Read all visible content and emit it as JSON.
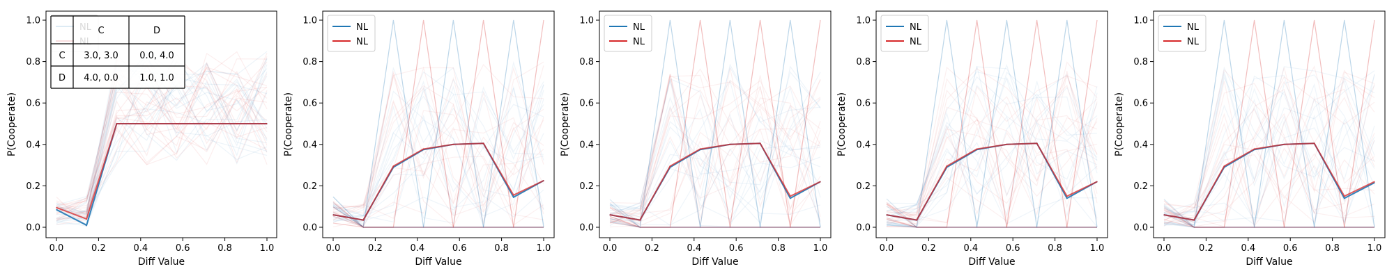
{
  "chart_data": [
    {
      "type": "line",
      "xlabel": "Diff Value",
      "ylabel": "P(Cooperate)",
      "xlim": [
        0.0,
        1.0
      ],
      "ylim": [
        0.0,
        1.0
      ],
      "x_ticks": [
        "0.0",
        "0.2",
        "0.4",
        "0.6",
        "0.8",
        "1.0"
      ],
      "y_ticks": [
        "0.0",
        "0.2",
        "0.4",
        "0.6",
        "0.8",
        "1.0"
      ],
      "grid": false,
      "legend_position": "top-left",
      "x": [
        0.0,
        0.143,
        0.286,
        0.429,
        0.571,
        0.714,
        0.857,
        1.0
      ],
      "series": [
        {
          "name": "NL",
          "color": "#1f77b4",
          "values": [
            0.085,
            0.01,
            0.5,
            0.5,
            0.5,
            0.5,
            0.5,
            0.5
          ]
        },
        {
          "name": "NL",
          "color": "#d62728",
          "values": [
            0.095,
            0.04,
            0.5,
            0.5,
            0.5,
            0.5,
            0.5,
            0.5
          ]
        }
      ],
      "payoff_table": {
        "header": [
          "",
          "C",
          "D"
        ],
        "rows": [
          [
            "C",
            "3.0, 3.0",
            "0.0, 4.0"
          ],
          [
            "D",
            "4.0, 0.0",
            "1.0, 1.0"
          ]
        ]
      }
    },
    {
      "type": "line",
      "xlabel": "Diff Value",
      "ylabel": "P(Cooperate)",
      "xlim": [
        0.0,
        1.0
      ],
      "ylim": [
        0.0,
        1.0
      ],
      "x_ticks": [
        "0.0",
        "0.2",
        "0.4",
        "0.6",
        "0.8",
        "1.0"
      ],
      "y_ticks": [
        "0.0",
        "0.2",
        "0.4",
        "0.6",
        "0.8",
        "1.0"
      ],
      "grid": false,
      "legend_position": "top-left",
      "x": [
        0.0,
        0.143,
        0.286,
        0.429,
        0.571,
        0.714,
        0.857,
        1.0
      ],
      "series": [
        {
          "name": "NL",
          "color": "#1f77b4",
          "values": [
            0.06,
            0.035,
            0.29,
            0.375,
            0.4,
            0.405,
            0.145,
            0.225
          ]
        },
        {
          "name": "NL",
          "color": "#d62728",
          "values": [
            0.06,
            0.035,
            0.295,
            0.378,
            0.4,
            0.405,
            0.155,
            0.225
          ]
        }
      ]
    },
    {
      "type": "line",
      "xlabel": "Diff Value",
      "ylabel": "P(Cooperate)",
      "xlim": [
        0.0,
        1.0
      ],
      "ylim": [
        0.0,
        1.0
      ],
      "x_ticks": [
        "0.0",
        "0.2",
        "0.4",
        "0.6",
        "0.8",
        "1.0"
      ],
      "y_ticks": [
        "0.0",
        "0.2",
        "0.4",
        "0.6",
        "0.8",
        "1.0"
      ],
      "grid": false,
      "legend_position": "top-left",
      "x": [
        0.0,
        0.143,
        0.286,
        0.429,
        0.571,
        0.714,
        0.857,
        1.0
      ],
      "series": [
        {
          "name": "NL",
          "color": "#1f77b4",
          "values": [
            0.06,
            0.035,
            0.29,
            0.375,
            0.4,
            0.405,
            0.14,
            0.22
          ]
        },
        {
          "name": "NL",
          "color": "#d62728",
          "values": [
            0.06,
            0.035,
            0.295,
            0.378,
            0.4,
            0.405,
            0.15,
            0.22
          ]
        }
      ]
    },
    {
      "type": "line",
      "xlabel": "Diff Value",
      "ylabel": "P(Cooperate)",
      "xlim": [
        0.0,
        1.0
      ],
      "ylim": [
        0.0,
        1.0
      ],
      "x_ticks": [
        "0.0",
        "0.2",
        "0.4",
        "0.6",
        "0.8",
        "1.0"
      ],
      "y_ticks": [
        "0.0",
        "0.2",
        "0.4",
        "0.6",
        "0.8",
        "1.0"
      ],
      "grid": false,
      "legend_position": "top-left",
      "x": [
        0.0,
        0.143,
        0.286,
        0.429,
        0.571,
        0.714,
        0.857,
        1.0
      ],
      "series": [
        {
          "name": "NL",
          "color": "#1f77b4",
          "values": [
            0.06,
            0.035,
            0.29,
            0.375,
            0.4,
            0.405,
            0.14,
            0.22
          ]
        },
        {
          "name": "NL",
          "color": "#d62728",
          "values": [
            0.06,
            0.035,
            0.295,
            0.378,
            0.4,
            0.405,
            0.15,
            0.22
          ]
        }
      ]
    },
    {
      "type": "line",
      "xlabel": "Diff Value",
      "ylabel": "P(Cooperate)",
      "xlim": [
        0.0,
        1.0
      ],
      "ylim": [
        0.0,
        1.0
      ],
      "x_ticks": [
        "0.0",
        "0.2",
        "0.4",
        "0.6",
        "0.8",
        "1.0"
      ],
      "y_ticks": [
        "0.0",
        "0.2",
        "0.4",
        "0.6",
        "0.8",
        "1.0"
      ],
      "grid": false,
      "legend_position": "top-left",
      "x": [
        0.0,
        0.143,
        0.286,
        0.429,
        0.571,
        0.714,
        0.857,
        1.0
      ],
      "series": [
        {
          "name": "NL",
          "color": "#1f77b4",
          "values": [
            0.06,
            0.035,
            0.29,
            0.375,
            0.4,
            0.405,
            0.14,
            0.215
          ]
        },
        {
          "name": "NL",
          "color": "#d62728",
          "values": [
            0.06,
            0.035,
            0.295,
            0.378,
            0.4,
            0.405,
            0.15,
            0.22
          ]
        }
      ]
    }
  ]
}
